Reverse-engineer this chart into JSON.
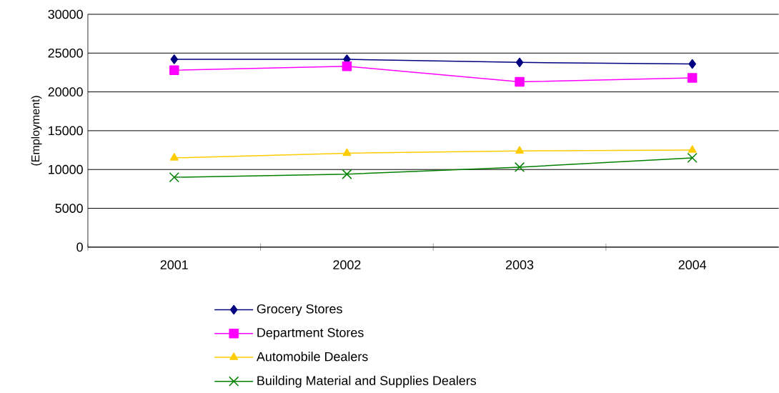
{
  "chart_data": {
    "type": "line",
    "ylabel": "(Employment)",
    "categories": [
      "2001",
      "2002",
      "2003",
      "2004"
    ],
    "series": [
      {
        "name": "Grocery Stores",
        "color": "#000080",
        "marker": "diamond",
        "values": [
          24200,
          24200,
          23800,
          23600
        ]
      },
      {
        "name": "Department Stores",
        "color": "#ff00ff",
        "marker": "square",
        "values": [
          22800,
          23300,
          21300,
          21800
        ]
      },
      {
        "name": "Automobile Dealers",
        "color": "#ffcc00",
        "marker": "triangle",
        "values": [
          11500,
          12100,
          12400,
          12500
        ]
      },
      {
        "name": "Building Material and Supplies Dealers",
        "color": "#008000",
        "marker": "cross",
        "values": [
          9000,
          9400,
          10300,
          11500
        ]
      }
    ],
    "ylim": [
      0,
      30000
    ],
    "yticks": [
      0,
      5000,
      10000,
      15000,
      20000,
      25000,
      30000
    ],
    "grid": "y",
    "legend": "bottom",
    "line_style": "solid"
  }
}
